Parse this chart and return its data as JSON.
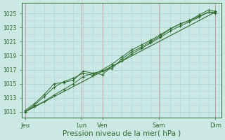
{
  "bg_color": "#cce8e4",
  "grid_color_minor_v": "#b0d8d4",
  "grid_color_minor_h": "#b0d8d4",
  "grid_color_major_v": "#c0a0a0",
  "line_color": "#2d6a2d",
  "xlabel": "Pression niveau de la mer( hPa )",
  "xlabel_fontsize": 7.5,
  "ytick_labels": [
    "1011",
    "1013",
    "1015",
    "1017",
    "1019",
    "1021",
    "1023",
    "1025"
  ],
  "ytick_values": [
    1011,
    1013,
    1015,
    1017,
    1019,
    1021,
    1023,
    1025
  ],
  "ylim": [
    1010.2,
    1026.5
  ],
  "xtick_labels": [
    "Jeu",
    "Lun",
    "Ven",
    "Sam",
    "Dim"
  ],
  "xtick_positions": [
    0,
    35,
    48,
    83,
    118
  ],
  "xlim": [
    -2,
    122
  ],
  "x_minor_step": 6,
  "x_total": 120,
  "line1_x": [
    0,
    6,
    12,
    18,
    24,
    30,
    36,
    42,
    48,
    54,
    60,
    66,
    72,
    78,
    84,
    90,
    96,
    102,
    108,
    114,
    118
  ],
  "line1_y": [
    1011.0,
    1011.8,
    1012.5,
    1013.4,
    1014.2,
    1015.0,
    1016.0,
    1016.5,
    1016.3,
    1017.5,
    1018.2,
    1019.2,
    1020.0,
    1020.8,
    1021.6,
    1022.5,
    1023.2,
    1023.8,
    1024.5,
    1025.2,
    1025.2
  ],
  "line2_x": [
    0,
    6,
    12,
    18,
    24,
    30,
    36,
    42,
    48,
    54,
    60,
    66,
    72,
    78,
    84,
    90,
    96,
    102,
    108,
    114,
    118
  ],
  "line2_y": [
    1011.2,
    1012.2,
    1013.5,
    1015.0,
    1015.2,
    1015.5,
    1016.8,
    1016.5,
    1016.8,
    1017.2,
    1018.5,
    1019.5,
    1020.2,
    1021.0,
    1021.8,
    1022.8,
    1023.5,
    1024.0,
    1024.8,
    1025.5,
    1025.3
  ],
  "line3_x": [
    0,
    6,
    12,
    18,
    24,
    30,
    36,
    42,
    48,
    54,
    60,
    66,
    72,
    78,
    84,
    90,
    96,
    102,
    108,
    114,
    118
  ],
  "line3_y": [
    1011.0,
    1012.0,
    1013.2,
    1014.5,
    1015.3,
    1015.8,
    1016.5,
    1016.2,
    1017.0,
    1017.8,
    1018.8,
    1019.8,
    1020.5,
    1021.2,
    1022.0,
    1022.8,
    1023.5,
    1024.0,
    1024.6,
    1025.2,
    1025.0
  ],
  "line_trend_x": [
    0,
    118
  ],
  "line_trend_y": [
    1011.0,
    1025.2
  ]
}
